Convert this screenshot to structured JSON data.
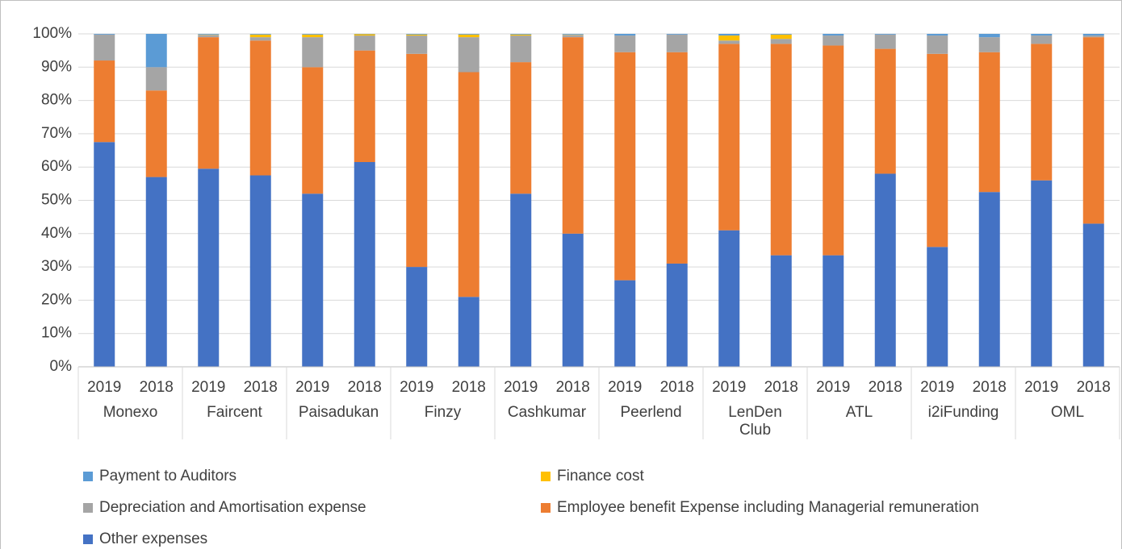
{
  "chart_data": {
    "type": "stacked_bar",
    "categories": [
      "2019",
      "2018",
      "2019",
      "2018",
      "2019",
      "2018",
      "2019",
      "2018",
      "2019",
      "2018",
      "2019",
      "2018",
      "2019",
      "2018",
      "2019",
      "2018",
      "2019",
      "2018",
      "2019",
      "2018"
    ],
    "groups": [
      "Monexo",
      "Faircent",
      "Paisadukan",
      "Finzy",
      "Cashkumar",
      "Peerlend",
      "LenDen Club",
      "ATL",
      "i2iFunding",
      "OML"
    ],
    "series": [
      {
        "name": "Other expenses",
        "color": "#4472c4",
        "values": [
          67.5,
          57,
          59.5,
          57.5,
          52,
          61.5,
          30,
          21,
          52,
          40,
          26,
          31,
          41,
          33.5,
          33.5,
          58,
          36,
          52.5,
          56,
          43
        ]
      },
      {
        "name": "Employee benefit Expense including Managerial remuneration",
        "color": "#ed7d31",
        "values": [
          24.5,
          26,
          39.5,
          40.5,
          38,
          33.5,
          64,
          67.5,
          39.5,
          59,
          68.5,
          63.5,
          56,
          63.5,
          63,
          37.5,
          58,
          42,
          41,
          56
        ]
      },
      {
        "name": "Depreciation and Amortisation expense",
        "color": "#a5a5a5",
        "values": [
          7.8,
          7,
          0.7,
          1,
          9,
          4.5,
          5.5,
          10.5,
          8,
          0.7,
          5,
          5.3,
          1,
          1.5,
          3,
          4.3,
          5.5,
          4.5,
          2.5,
          0.5
        ]
      },
      {
        "name": "Finance cost",
        "color": "#ffc000",
        "values": [
          0,
          0,
          0.1,
          0.8,
          0.8,
          0.4,
          0.3,
          0.8,
          0.3,
          0.1,
          0,
          0,
          1.5,
          1.3,
          0,
          0,
          0,
          0,
          0,
          0
        ]
      },
      {
        "name": "Payment to Auditors",
        "color": "#5b9bd5",
        "values": [
          0.2,
          10,
          0.2,
          0.2,
          0.2,
          0.1,
          0.2,
          0.2,
          0.2,
          0.2,
          0.5,
          0.2,
          0.5,
          0.2,
          0.5,
          0.2,
          0.5,
          1,
          0.5,
          0.5
        ]
      }
    ],
    "ylim": [
      0,
      100
    ],
    "yticks": [
      {
        "value": 0,
        "label": "0%"
      },
      {
        "value": 10,
        "label": "10%"
      },
      {
        "value": 20,
        "label": "20%"
      },
      {
        "value": 30,
        "label": "30%"
      },
      {
        "value": 40,
        "label": "40%"
      },
      {
        "value": 50,
        "label": "50%"
      },
      {
        "value": 60,
        "label": "60%"
      },
      {
        "value": 70,
        "label": "70%"
      },
      {
        "value": 80,
        "label": "80%"
      },
      {
        "value": 90,
        "label": "90%"
      },
      {
        "value": 100,
        "label": "100%"
      }
    ],
    "grid": true,
    "legend": "bottom"
  }
}
